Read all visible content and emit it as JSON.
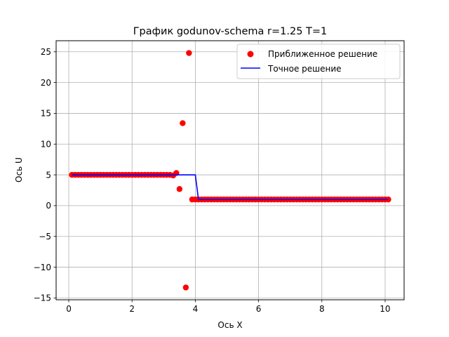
{
  "chart_data": {
    "type": "scatter",
    "title": "График godunov-schema r=1.25 T=1",
    "xlabel": "Ось X",
    "ylabel": "Ось U",
    "xlim": [
      -0.4,
      10.6
    ],
    "ylim": [
      -15.3,
      26.8
    ],
    "x_ticks": [
      0,
      2,
      4,
      6,
      8,
      10
    ],
    "y_ticks": [
      -15,
      -10,
      -5,
      0,
      5,
      10,
      15,
      20,
      25
    ],
    "x_tick_labels": [
      "0",
      "2",
      "4",
      "6",
      "8",
      "10"
    ],
    "y_tick_labels": [
      "−15",
      "−10",
      "−5",
      "0",
      "5",
      "10",
      "15",
      "20",
      "25"
    ],
    "grid": true,
    "legend_position": "top-right",
    "series": [
      {
        "name": "Приближенное решение",
        "kind": "scatter",
        "color": "#ff0000",
        "x": [
          0.1,
          0.2,
          0.3,
          0.4,
          0.5,
          0.6,
          0.7,
          0.8,
          0.9,
          1.0,
          1.1,
          1.2,
          1.3,
          1.4,
          1.5,
          1.6,
          1.7,
          1.8,
          1.9,
          2.0,
          2.1,
          2.2,
          2.3,
          2.4,
          2.5,
          2.6,
          2.7,
          2.8,
          2.9,
          3.0,
          3.1,
          3.2,
          3.3,
          3.4,
          3.5,
          3.6,
          3.7,
          3.8,
          3.9,
          4.0,
          4.1,
          4.2,
          4.3,
          4.4,
          4.5,
          4.6,
          4.7,
          4.8,
          4.9,
          5.0,
          5.1,
          5.2,
          5.3,
          5.4,
          5.5,
          5.6,
          5.7,
          5.8,
          5.9,
          6.0,
          6.1,
          6.2,
          6.3,
          6.4,
          6.5,
          6.6,
          6.7,
          6.8,
          6.9,
          7.0,
          7.1,
          7.2,
          7.3,
          7.4,
          7.5,
          7.6,
          7.7,
          7.8,
          7.9,
          8.0,
          8.1,
          8.2,
          8.3,
          8.4,
          8.5,
          8.6,
          8.7,
          8.8,
          8.9,
          9.0,
          9.1,
          9.2,
          9.3,
          9.4,
          9.5,
          9.6,
          9.7,
          9.8,
          9.9,
          10.0,
          10.1
        ],
        "y": [
          5,
          5,
          5,
          5,
          5,
          5,
          5,
          5,
          5,
          5,
          5,
          5,
          5,
          5,
          5,
          5,
          5,
          5,
          5,
          5,
          5,
          5,
          5,
          5,
          5,
          5,
          5,
          5,
          5,
          5,
          5,
          5,
          4.9,
          5.3,
          2.7,
          13.4,
          -13.3,
          24.8,
          1,
          1,
          1,
          1,
          1,
          1,
          1,
          1,
          1,
          1,
          1,
          1,
          1,
          1,
          1,
          1,
          1,
          1,
          1,
          1,
          1,
          1,
          1,
          1,
          1,
          1,
          1,
          1,
          1,
          1,
          1,
          1,
          1,
          1,
          1,
          1,
          1,
          1,
          1,
          1,
          1,
          1,
          1,
          1,
          1,
          1,
          1,
          1,
          1,
          1,
          1,
          1,
          1,
          1,
          1,
          1,
          1,
          1,
          1,
          1,
          1,
          1,
          1
        ]
      },
      {
        "name": "Точное решение",
        "kind": "line",
        "color": "#0000ff",
        "x": [
          0.1,
          4.0,
          4.1,
          10.1
        ],
        "y": [
          5,
          5,
          1,
          1
        ]
      }
    ]
  }
}
